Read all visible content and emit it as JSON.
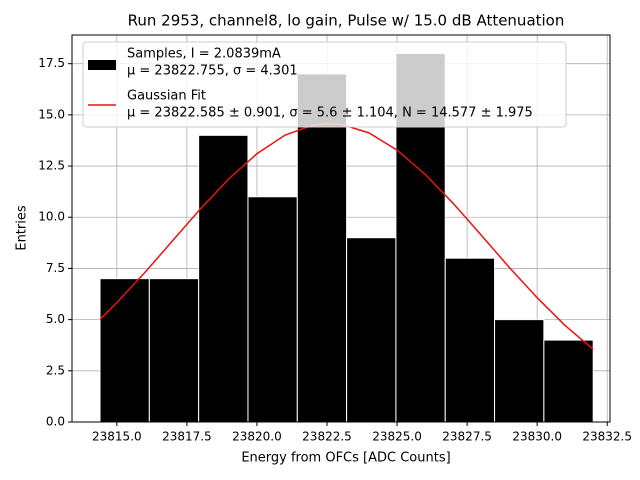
{
  "chart_data": {
    "type": "histogram",
    "title": "Run 2953, channel8, lo gain, Pulse w/ 15.0 dB Attenuation",
    "xlabel": "Energy from OFCs [ADC Counts]",
    "ylabel": "Entries",
    "bins": [
      23814.4,
      23816.16,
      23817.92,
      23819.68,
      23821.44,
      23823.2,
      23824.96,
      23826.72,
      23828.48,
      23830.24,
      23832.0
    ],
    "counts": [
      7,
      7,
      14,
      11,
      17,
      9,
      18,
      8,
      5,
      4
    ],
    "color": "#000000",
    "fit": {
      "color": "#ee1111",
      "x": [
        23814.4,
        23815,
        23816,
        23817,
        23818,
        23819,
        23820,
        23821,
        23822,
        23822.6,
        23823,
        23824,
        23825,
        23826,
        23827,
        23828,
        23829,
        23830,
        23831,
        23832
      ],
      "values": [
        5.01,
        5.83,
        7.3,
        8.87,
        10.43,
        11.88,
        13.1,
        14.01,
        14.5,
        14.58,
        14.54,
        14.12,
        13.28,
        12.1,
        10.68,
        9.13,
        7.56,
        6.07,
        4.71,
        3.55
      ]
    },
    "legend": [
      {
        "lines": [
          "Samples, I = 2.0839mA",
          "μ = 23822.755, σ = 4.301"
        ]
      },
      {
        "lines": [
          "Gaussian Fit",
          "μ = 23822.585 ± 0.901, σ = 5.6 ± 1.104, N = 14.577 ± 1.975"
        ]
      }
    ],
    "legend_position": "upper left",
    "grid": true,
    "xlim": [
      23813.4,
      23832.6
    ],
    "ylim": [
      0,
      18.9
    ],
    "xticks": [
      {
        "value": 23815,
        "label": "23815.0"
      },
      {
        "value": 23817.5,
        "label": "23817.5"
      },
      {
        "value": 23820,
        "label": "23820.0"
      },
      {
        "value": 23822.5,
        "label": "23822.5"
      },
      {
        "value": 23825,
        "label": "23825.0"
      },
      {
        "value": 23827.5,
        "label": "23827.5"
      },
      {
        "value": 23830,
        "label": "23830.0"
      },
      {
        "value": 23832.5,
        "label": "23832.5"
      }
    ],
    "yticks": [
      {
        "value": 0,
        "label": "0.0"
      },
      2.5,
      {
        "value": 5,
        "label": "5.0"
      },
      7.5,
      {
        "value": 10,
        "label": "10.0"
      },
      12.5,
      {
        "value": 15,
        "label": "15.0"
      },
      17.5
    ]
  }
}
